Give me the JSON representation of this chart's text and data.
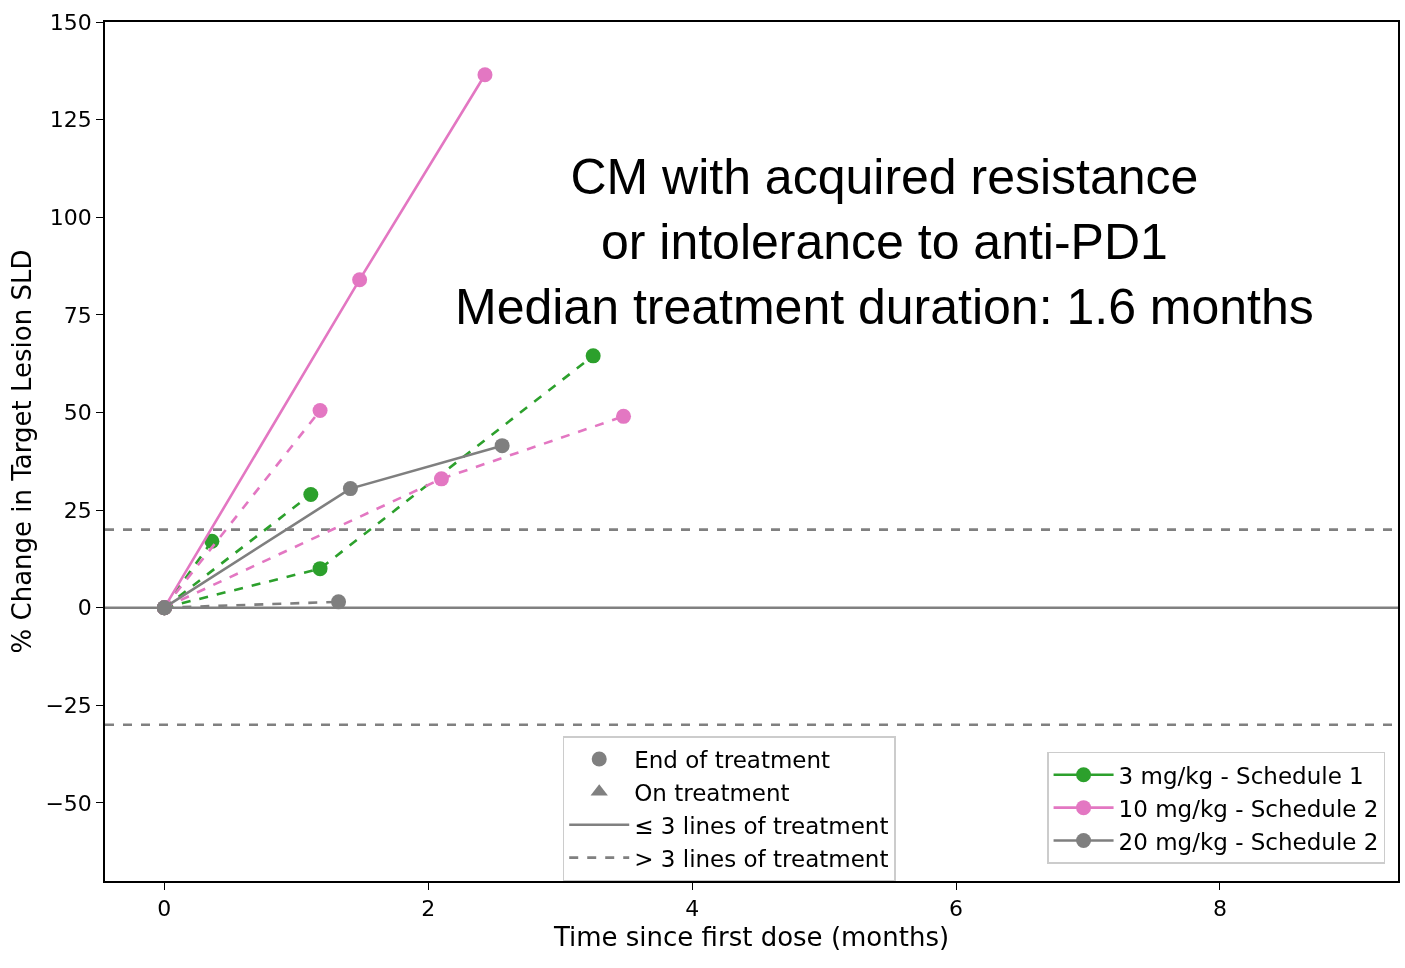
{
  "chart_data": {
    "type": "line",
    "xlabel": "Time since first dose (months)",
    "ylabel": "% Change in Target Lesion SLD",
    "annotations": [
      "CM with acquired resistance\nor intolerance to anti-PD1\nMedian treatment duration: 1.6 months"
    ],
    "xlim": [
      -0.45,
      9.35
    ],
    "xticks": [
      0,
      2,
      4,
      6,
      8
    ],
    "ylim": [
      -70,
      150
    ],
    "yticks": [
      -50,
      -25,
      0,
      25,
      50,
      75,
      100,
      125,
      150
    ],
    "grid": false,
    "legend": "bottom right",
    "marker": "circle",
    "ref_lines": [
      {
        "axis": "y",
        "value": 0,
        "color": "#808080",
        "line_style": "solid"
      },
      {
        "axis": "y",
        "value": 20,
        "color": "#808080",
        "line_style": "dashed"
      },
      {
        "axis": "y",
        "value": -30,
        "color": "#808080",
        "line_style": "dashed"
      }
    ],
    "series": [
      {
        "name": "3 mg/kg - Schedule 1",
        "color": "#2ca02c",
        "line_style": "solid"
      },
      {
        "name": "10 mg/kg - Schedule 2",
        "color": "#e377c2",
        "line_style": "solid"
      },
      {
        "name": "20 mg/kg - Schedule 2",
        "color": "#7f7f7f",
        "line_style": "solid"
      },
      {
        "color": "#2ca02c",
        "line_style": "dashed",
        "x": [
          0,
          0.36
        ],
        "values": [
          0,
          17
        ]
      },
      {
        "color": "#2ca02c",
        "line_style": "dashed",
        "x": [
          0,
          1.11
        ],
        "values": [
          0,
          29
        ]
      },
      {
        "color": "#2ca02c",
        "line_style": "dashed",
        "x": [
          0,
          1.18,
          3.25
        ],
        "values": [
          0,
          10,
          64.5
        ]
      },
      {
        "color": "#e377c2",
        "line_style": "solid",
        "x": [
          0,
          1.48,
          2.43
        ],
        "values": [
          0,
          84,
          136.5
        ]
      },
      {
        "color": "#e377c2",
        "line_style": "dashed",
        "x": [
          0,
          1.18
        ],
        "values": [
          0,
          50.5
        ]
      },
      {
        "color": "#e377c2",
        "line_style": "dashed",
        "x": [
          0,
          2.1,
          3.48
        ],
        "values": [
          0,
          33,
          49
        ]
      },
      {
        "color": "#7f7f7f",
        "line_style": "solid",
        "x": [
          0,
          1.41,
          2.56
        ],
        "values": [
          0,
          30.5,
          41.5
        ]
      },
      {
        "color": "#7f7f7f",
        "line_style": "dashed",
        "x": [
          0,
          1.32
        ],
        "values": [
          0,
          1.5
        ]
      },
      {
        "name": "End of treatment",
        "color": "#808080",
        "marker": "circle",
        "line_style": "none"
      },
      {
        "name": "On treatment",
        "color": "#808080",
        "marker": "triangle",
        "line_style": "none"
      },
      {
        "name": "≤ 3 lines of treatment",
        "color": "#808080",
        "marker": "none",
        "line_style": "solid"
      },
      {
        "name": "> 3 lines of treatment",
        "color": "#808080",
        "marker": "none",
        "line_style": "dashed"
      }
    ]
  }
}
